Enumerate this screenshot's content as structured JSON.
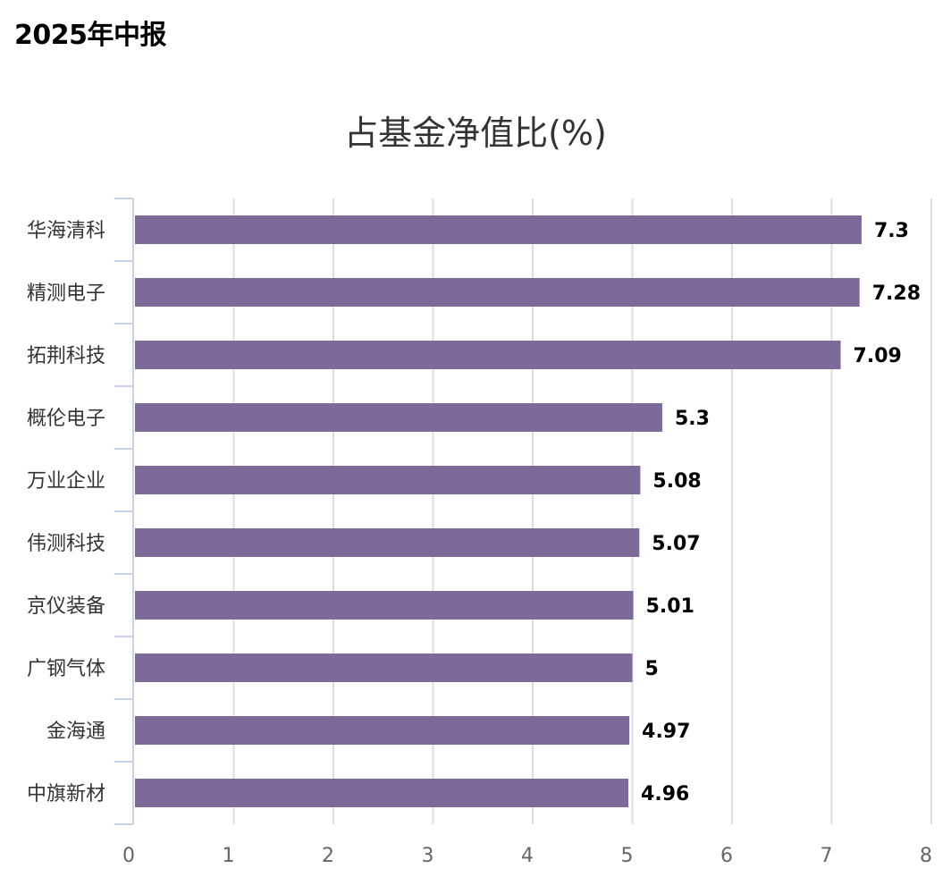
{
  "header": {
    "title": "2025年中报"
  },
  "colors": {
    "bar": "#7D6A9A",
    "grid": "#DDDDDD",
    "axis": "#C8D2EA"
  },
  "chart_data": {
    "type": "bar",
    "orientation": "horizontal",
    "title": "占基金净值比(%)",
    "categories": [
      "华海清科",
      "精测电子",
      "拓荆科技",
      "概伦电子",
      "万业企业",
      "伟测科技",
      "京仪装备",
      "广钢气体",
      "金海通",
      "中旗新材"
    ],
    "values": [
      7.3,
      7.28,
      7.09,
      5.3,
      5.08,
      5.07,
      5.01,
      5,
      4.97,
      4.96
    ],
    "value_labels": [
      "7.3",
      "7.28",
      "7.09",
      "5.3",
      "5.08",
      "5.07",
      "5.01",
      "5",
      "4.97",
      "4.96"
    ],
    "xlim": [
      0,
      8
    ],
    "x_ticks": [
      "0",
      "1",
      "2",
      "3",
      "4",
      "5",
      "6",
      "7",
      "8"
    ],
    "grid": true
  }
}
